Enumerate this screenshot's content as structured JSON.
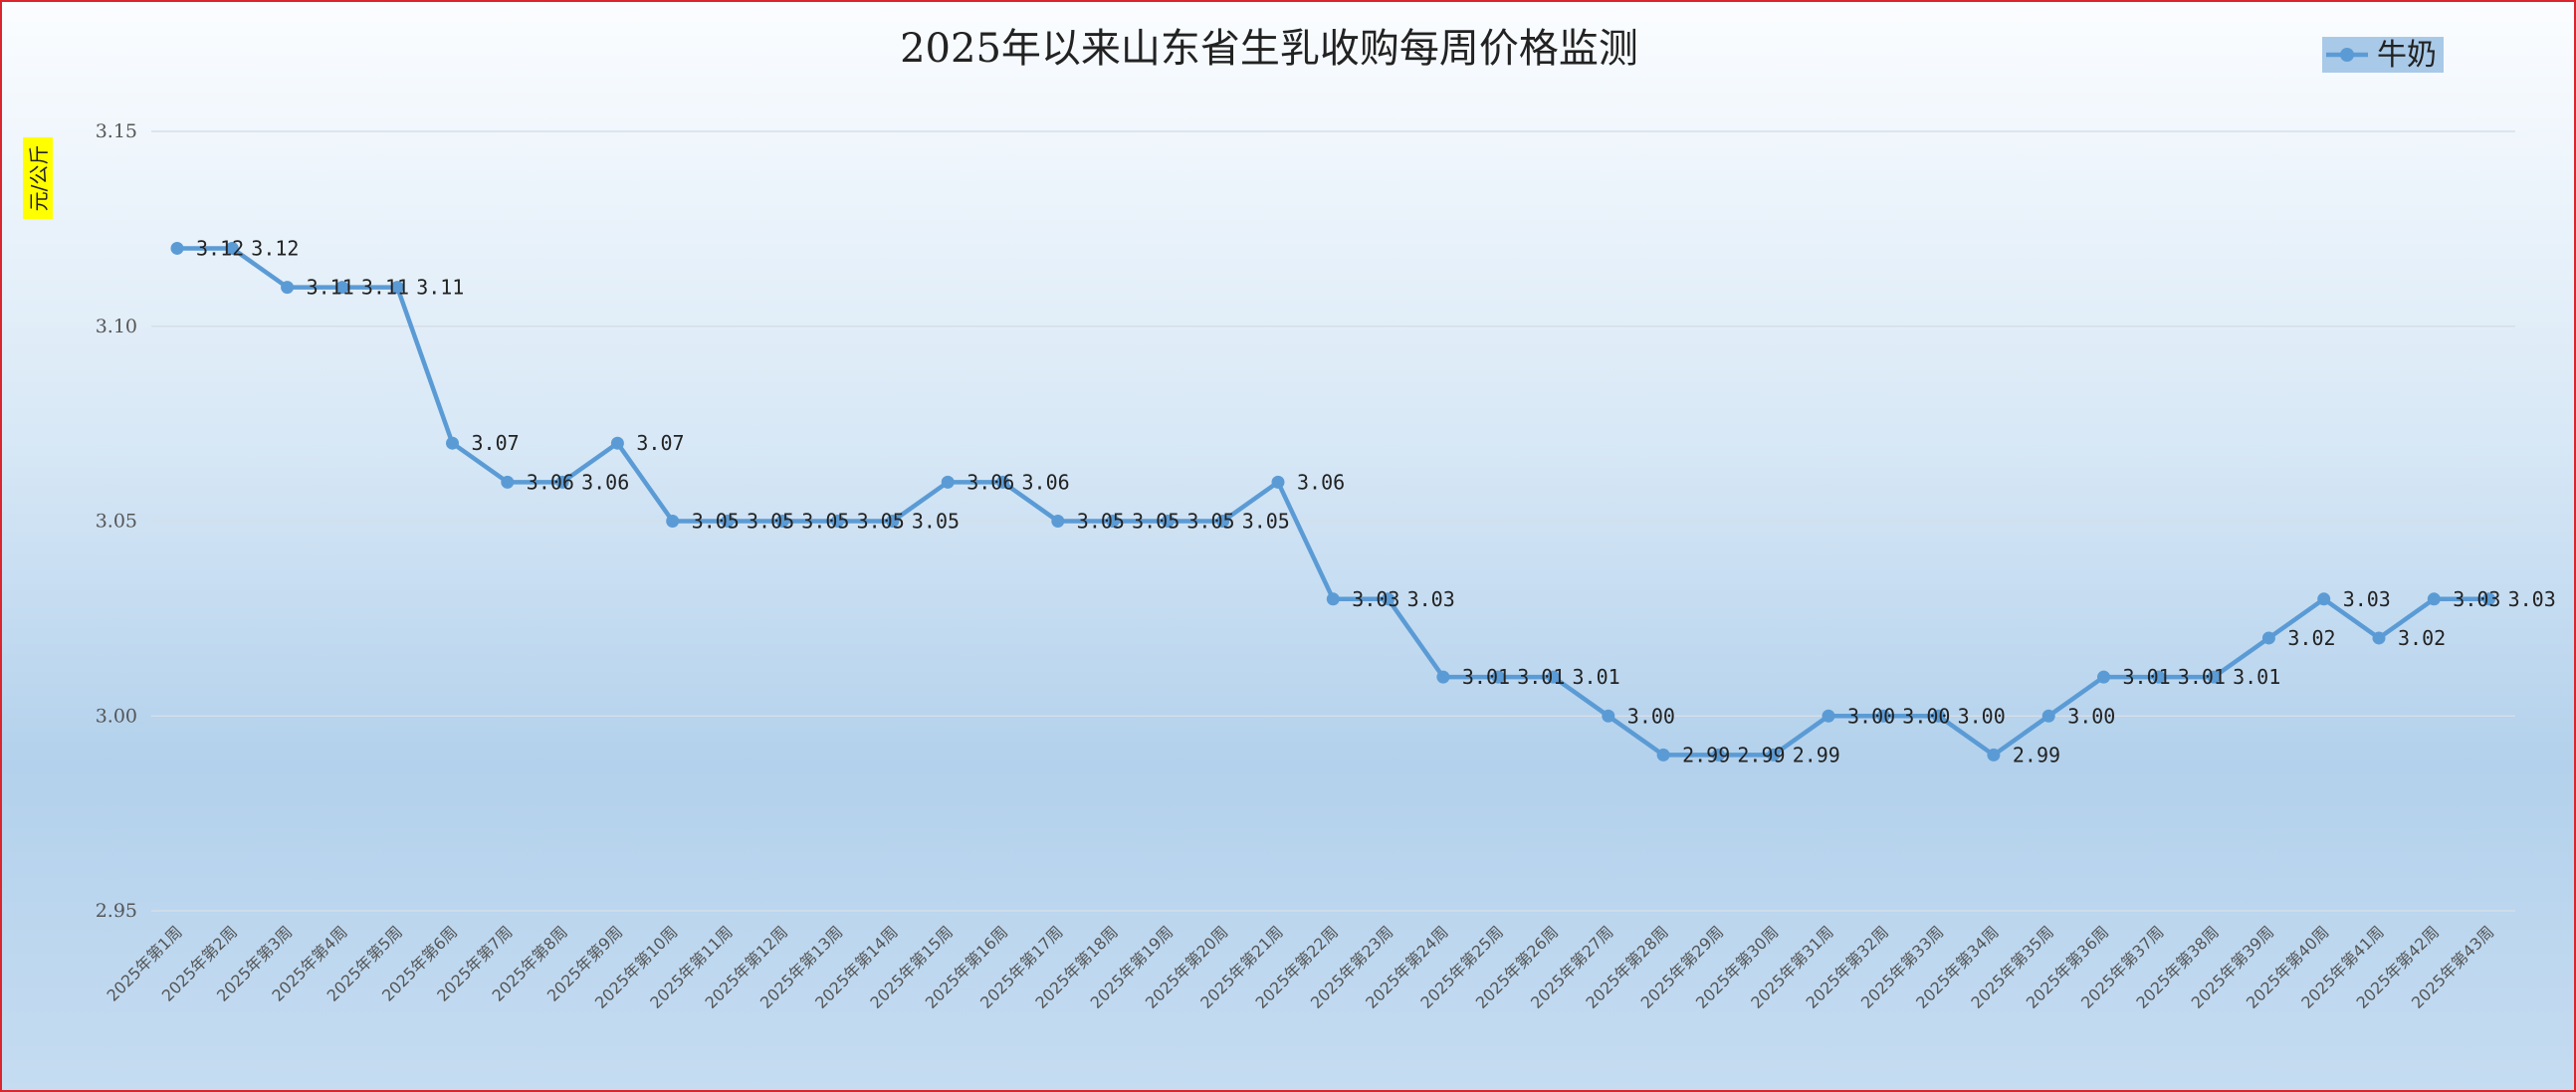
{
  "chart_data": {
    "type": "line",
    "title": "2025年以来山东省生乳收购每周价格监测",
    "ylabel": "元/公斤",
    "xlabel": "",
    "ylim": [
      2.95,
      3.15
    ],
    "yticks": [
      "3.15",
      "3.10",
      "3.05",
      "3.00",
      "2.95"
    ],
    "ytick_values": [
      3.15,
      3.1,
      3.05,
      3.0,
      2.95
    ],
    "grid": true,
    "legend_position": "top-right",
    "categories": [
      "2025年第1周",
      "2025年第2周",
      "2025年第3周",
      "2025年第4周",
      "2025年第5周",
      "2025年第6周",
      "2025年第7周",
      "2025年第8周",
      "2025年第9周",
      "2025年第10周",
      "2025年第11周",
      "2025年第12周",
      "2025年第13周",
      "2025年第14周",
      "2025年第15周",
      "2025年第16周",
      "2025年第17周",
      "2025年第18周",
      "2025年第19周",
      "2025年第20周",
      "2025年第21周",
      "2025年第22周",
      "2025年第23周",
      "2025年第24周",
      "2025年第25周",
      "2025年第26周",
      "2025年第27周",
      "2025年第28周",
      "2025年第29周",
      "2025年第30周",
      "2025年第31周",
      "2025年第32周",
      "2025年第33周",
      "2025年第34周",
      "2025年第35周",
      "2025年第36周",
      "2025年第37周",
      "2025年第38周",
      "2025年第39周",
      "2025年第40周",
      "2025年第41周",
      "2025年第42周",
      "2025年第43周"
    ],
    "series": [
      {
        "name": "牛奶",
        "color": "#5b9bd5",
        "values": [
          3.12,
          3.12,
          3.11,
          3.11,
          3.11,
          3.07,
          3.06,
          3.06,
          3.07,
          3.05,
          3.05,
          3.05,
          3.05,
          3.05,
          3.06,
          3.06,
          3.05,
          3.05,
          3.05,
          3.05,
          3.06,
          3.03,
          3.03,
          3.01,
          3.01,
          3.01,
          3.0,
          2.99,
          2.99,
          2.99,
          3.0,
          3.0,
          3.0,
          2.99,
          3.0,
          3.01,
          3.01,
          3.01,
          3.02,
          3.03,
          3.02,
          3.03,
          3.03
        ],
        "labels": [
          "3.12",
          "3.12",
          "3.11",
          "3.11",
          "3.11",
          "3.07",
          "3.06",
          "3.06",
          "3.07",
          "3.05",
          "3.05",
          "3.05",
          "3.05",
          "3.05",
          "3.06",
          "3.06",
          "3.05",
          "3.05",
          "3.05",
          "3.05",
          "3.06",
          "3.03",
          "3.03",
          "3.01",
          "3.01",
          "3.01",
          "3.00",
          "2.99",
          "2.99",
          "2.99",
          "3.00",
          "3.00",
          "3.00",
          "2.99",
          "3.00",
          "3.01",
          "3.01",
          "3.01",
          "3.02",
          "3.03",
          "3.02",
          "3.03",
          "3.03"
        ]
      }
    ]
  },
  "colors": {
    "border": "#d9262e",
    "ylabel_highlight": "#ffff00",
    "legend_highlight": "#a9c9e8"
  }
}
